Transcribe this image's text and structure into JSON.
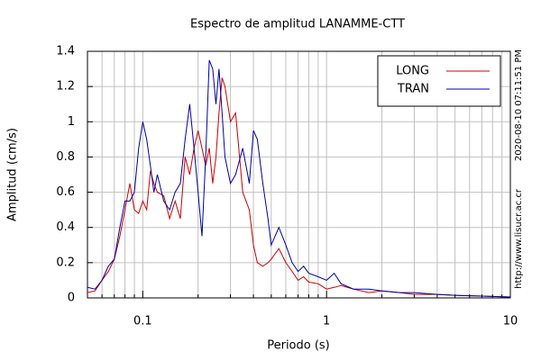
{
  "chart_data": {
    "type": "line",
    "title": "Espectro de amplitud LANAMME-CTT",
    "xlabel": "Periodo (s)",
    "ylabel": "Amplitud (cm/s)",
    "annotations": [
      "2020-08-10 07:11:51 PM",
      "http://www.lisucr.ac.cr"
    ],
    "xscale": "log",
    "xlim": [
      0.05,
      10
    ],
    "xticks": [
      0.1,
      1,
      10
    ],
    "ylim": [
      0,
      1.4
    ],
    "yticks": [
      0,
      0.2,
      0.4,
      0.6,
      0.8,
      1,
      1.2,
      1.4
    ],
    "grid": true,
    "legend": "upper right",
    "x": [
      0.05,
      0.055,
      0.06,
      0.065,
      0.07,
      0.075,
      0.08,
      0.085,
      0.09,
      0.095,
      0.1,
      0.105,
      0.11,
      0.115,
      0.12,
      0.13,
      0.14,
      0.15,
      0.16,
      0.17,
      0.18,
      0.19,
      0.2,
      0.21,
      0.22,
      0.23,
      0.24,
      0.25,
      0.26,
      0.27,
      0.28,
      0.3,
      0.32,
      0.35,
      0.38,
      0.4,
      0.42,
      0.45,
      0.48,
      0.5,
      0.55,
      0.6,
      0.65,
      0.7,
      0.75,
      0.8,
      0.9,
      1.0,
      1.1,
      1.2,
      1.4,
      1.7,
      2,
      2.5,
      3,
      4,
      5,
      7,
      10
    ],
    "series": [
      {
        "name": "LONG",
        "color": "#d00000",
        "values": [
          0.03,
          0.04,
          0.1,
          0.15,
          0.22,
          0.35,
          0.5,
          0.65,
          0.5,
          0.48,
          0.55,
          0.5,
          0.72,
          0.65,
          0.6,
          0.58,
          0.45,
          0.55,
          0.45,
          0.8,
          0.7,
          0.85,
          0.95,
          0.85,
          0.75,
          0.85,
          0.65,
          0.8,
          1.05,
          1.25,
          1.2,
          1.0,
          1.05,
          0.6,
          0.5,
          0.3,
          0.2,
          0.18,
          0.2,
          0.22,
          0.28,
          0.2,
          0.15,
          0.1,
          0.12,
          0.09,
          0.08,
          0.05,
          0.06,
          0.07,
          0.05,
          0.03,
          0.04,
          0.03,
          0.02,
          0.02,
          0.015,
          0.01,
          0.005
        ]
      },
      {
        "name": "TRAN",
        "color": "#0000a8",
        "values": [
          0.06,
          0.05,
          0.1,
          0.18,
          0.22,
          0.4,
          0.55,
          0.55,
          0.6,
          0.85,
          1.0,
          0.9,
          0.75,
          0.6,
          0.7,
          0.55,
          0.5,
          0.6,
          0.65,
          0.9,
          1.1,
          0.85,
          0.6,
          0.35,
          0.8,
          1.35,
          1.3,
          1.1,
          1.3,
          1.05,
          0.8,
          0.65,
          0.7,
          0.85,
          0.65,
          0.95,
          0.9,
          0.65,
          0.45,
          0.3,
          0.4,
          0.3,
          0.2,
          0.15,
          0.18,
          0.14,
          0.12,
          0.1,
          0.14,
          0.08,
          0.05,
          0.05,
          0.04,
          0.03,
          0.03,
          0.02,
          0.015,
          0.01,
          0.005
        ]
      }
    ]
  }
}
